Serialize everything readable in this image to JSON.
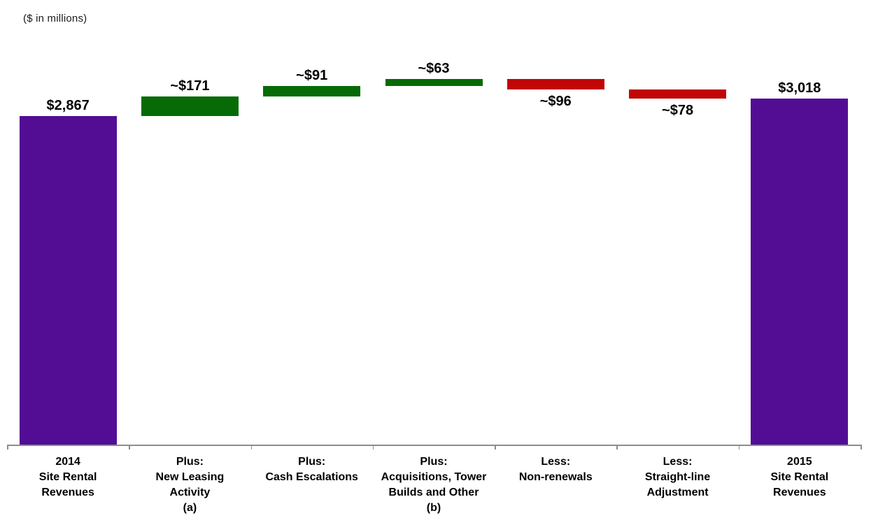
{
  "chart_data": {
    "type": "bar",
    "subtype": "waterfall",
    "title": "",
    "xlabel": "",
    "ylabel": "",
    "note": "($ in millions)",
    "legend_position": "none",
    "grid": false,
    "y_axis_visible": false,
    "ylim": [
      0,
      3192
    ],
    "categories": [
      "2014 Site Rental Revenues",
      "Plus: New Leasing Activity (a)",
      "Plus: Cash Escalations",
      "Plus: Acquisitions, Tower Builds and Other (b)",
      "Less: Non-renewals",
      "Less: Straight-line Adjustment",
      "2015 Site Rental Revenues"
    ],
    "values": [
      2867,
      171,
      91,
      63,
      -96,
      -78,
      3018
    ],
    "steps": [
      {
        "category_lines": [
          "2014",
          "Site Rental",
          "Revenues"
        ],
        "value": 2867,
        "label": "$2,867",
        "kind": "total",
        "label_position": "above"
      },
      {
        "category_lines": [
          "Plus:",
          "New Leasing",
          "Activity",
          "(a)"
        ],
        "value": 171,
        "label": "~$171",
        "kind": "increase",
        "label_position": "above"
      },
      {
        "category_lines": [
          "Plus:",
          "Cash Escalations"
        ],
        "value": 91,
        "label": "~$91",
        "kind": "increase",
        "label_position": "above"
      },
      {
        "category_lines": [
          "Plus:",
          "Acquisitions, Tower",
          "Builds and Other",
          "(b)"
        ],
        "value": 63,
        "label": "~$63",
        "kind": "increase",
        "label_position": "above"
      },
      {
        "category_lines": [
          "Less:",
          "Non-renewals"
        ],
        "value": -96,
        "label": "~$96",
        "kind": "decrease",
        "label_position": "below"
      },
      {
        "category_lines": [
          "Less:",
          "Straight-line",
          "Adjustment"
        ],
        "value": -78,
        "label": "~$78",
        "kind": "decrease",
        "label_position": "below"
      },
      {
        "category_lines": [
          "2015",
          "Site Rental",
          "Revenues"
        ],
        "value": 3018,
        "label": "$3,018",
        "kind": "total",
        "label_position": "above"
      }
    ],
    "colors": {
      "total": "#520d94",
      "increase": "#066b06",
      "decrease": "#c00606",
      "axis": "#8c8c8c",
      "text": "#000000"
    }
  }
}
